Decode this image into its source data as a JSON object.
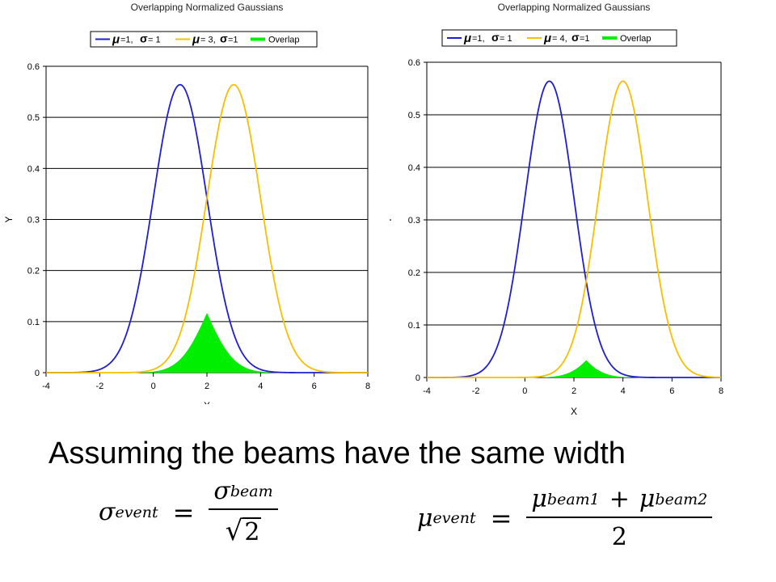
{
  "chart_data": [
    {
      "type": "area",
      "title": "Overlapping Normalized Gaussians",
      "xlabel": "X",
      "ylabel": "Y",
      "xlim": [
        -4,
        8
      ],
      "ylim": [
        0,
        0.6
      ],
      "xticks": [
        "-4",
        "-2",
        "0",
        "2",
        "4",
        "6",
        "8"
      ],
      "yticks": [
        "0",
        "0.1",
        "0.2",
        "0.3",
        "0.4",
        "0.5",
        "0.6"
      ],
      "grid": "horizontal",
      "legend_position": "top",
      "series": [
        {
          "name_mu": "=1,",
          "name_sigma": "= 1",
          "type": "line",
          "color": "#1f1fcf",
          "mu": 1,
          "sigma": 1,
          "peak": 0.564
        },
        {
          "name_mu": "= 3,",
          "name_sigma": "=1",
          "type": "line",
          "color": "#f5c000",
          "mu": 3,
          "sigma": 1,
          "peak": 0.564
        },
        {
          "name": "Overlap",
          "type": "area",
          "color": "#00ee00",
          "peak_x": 2,
          "peak": 0.117
        }
      ]
    },
    {
      "type": "area",
      "title": "Overlapping Normalized Gaussians",
      "xlabel": "X",
      "ylabel": "Y",
      "xlim": [
        -4,
        8
      ],
      "ylim": [
        0,
        0.6
      ],
      "xticks": [
        "-4",
        "-2",
        "0",
        "2",
        "4",
        "6",
        "8"
      ],
      "yticks": [
        "0",
        "0.1",
        "0.2",
        "0.3",
        "0.4",
        "0.5",
        "0.6"
      ],
      "grid": "horizontal",
      "legend_position": "top",
      "series": [
        {
          "name_mu": "=1,",
          "name_sigma": "= 1",
          "type": "line",
          "color": "#1f1fcf",
          "mu": 1,
          "sigma": 1,
          "peak": 0.564
        },
        {
          "name_mu": "= 4,",
          "name_sigma": "=1",
          "type": "line",
          "color": "#f5c000",
          "mu": 4,
          "sigma": 1,
          "peak": 0.564
        },
        {
          "name": "Overlap",
          "type": "area",
          "color": "#00ee00",
          "peak_x": 2.5,
          "peak": 0.033
        }
      ]
    }
  ],
  "caption": "Assuming the beams have the same width",
  "formulas": {
    "sigma_event": {
      "sym": "σ",
      "sub": "event",
      "eq": "=",
      "num_sym": "σ",
      "num_sub": "beam",
      "sqrt": "√",
      "den": "2"
    },
    "mu_event": {
      "sym": "μ",
      "sub": "event",
      "eq": "=",
      "t1_sym": "μ",
      "t1_sub": "beam1",
      "plus": "+",
      "t2_sym": "μ",
      "t2_sub": "beam2",
      "den": "2"
    }
  }
}
